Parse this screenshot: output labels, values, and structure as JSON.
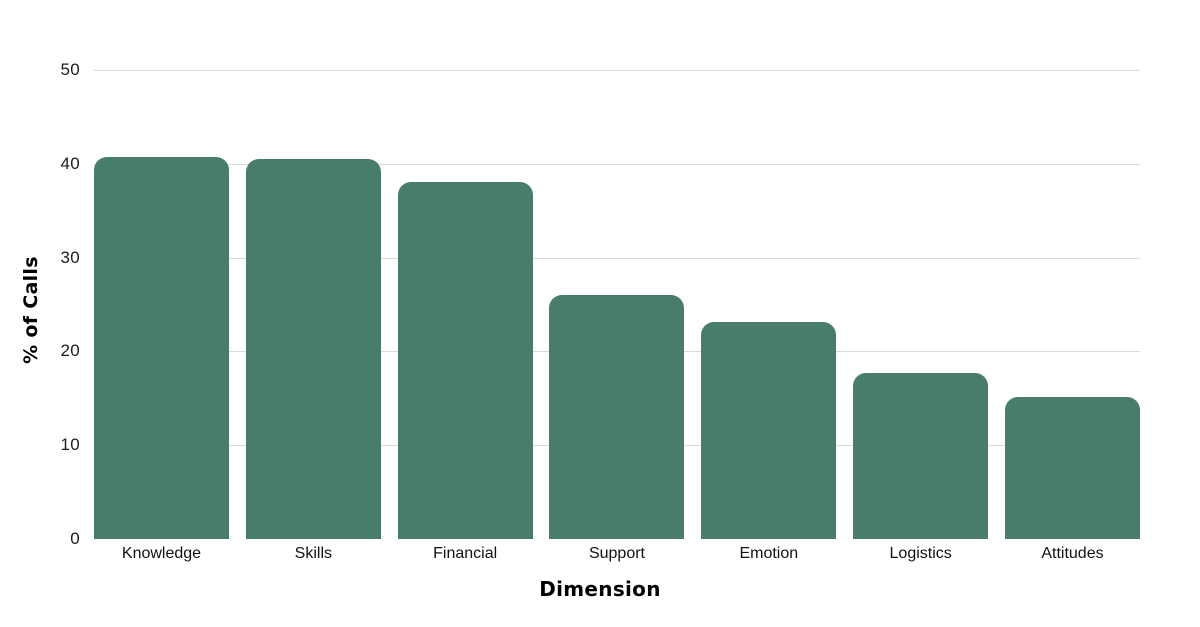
{
  "chart_data": {
    "type": "bar",
    "title": "",
    "xlabel": "Dimension",
    "ylabel": "% of Calls",
    "categories": [
      "Knowledge",
      "Skills",
      "Financial",
      "Support",
      "Emotion",
      "Logistics",
      "Attitudes"
    ],
    "values": [
      40.7,
      40.5,
      38.1,
      26.0,
      23.1,
      17.7,
      15.1
    ],
    "ylim": [
      0,
      50
    ],
    "yticks": [
      0,
      10,
      20,
      30,
      40,
      50
    ],
    "grid": "horizontal gridlines at each y tick, none at 0",
    "legend": "none",
    "colors": {
      "bar": "#487d6a",
      "gridline": "#d9d9d9",
      "tick_text": "#1c1c1c",
      "axis_title_text": "#000000",
      "background": "#ffffff"
    }
  }
}
